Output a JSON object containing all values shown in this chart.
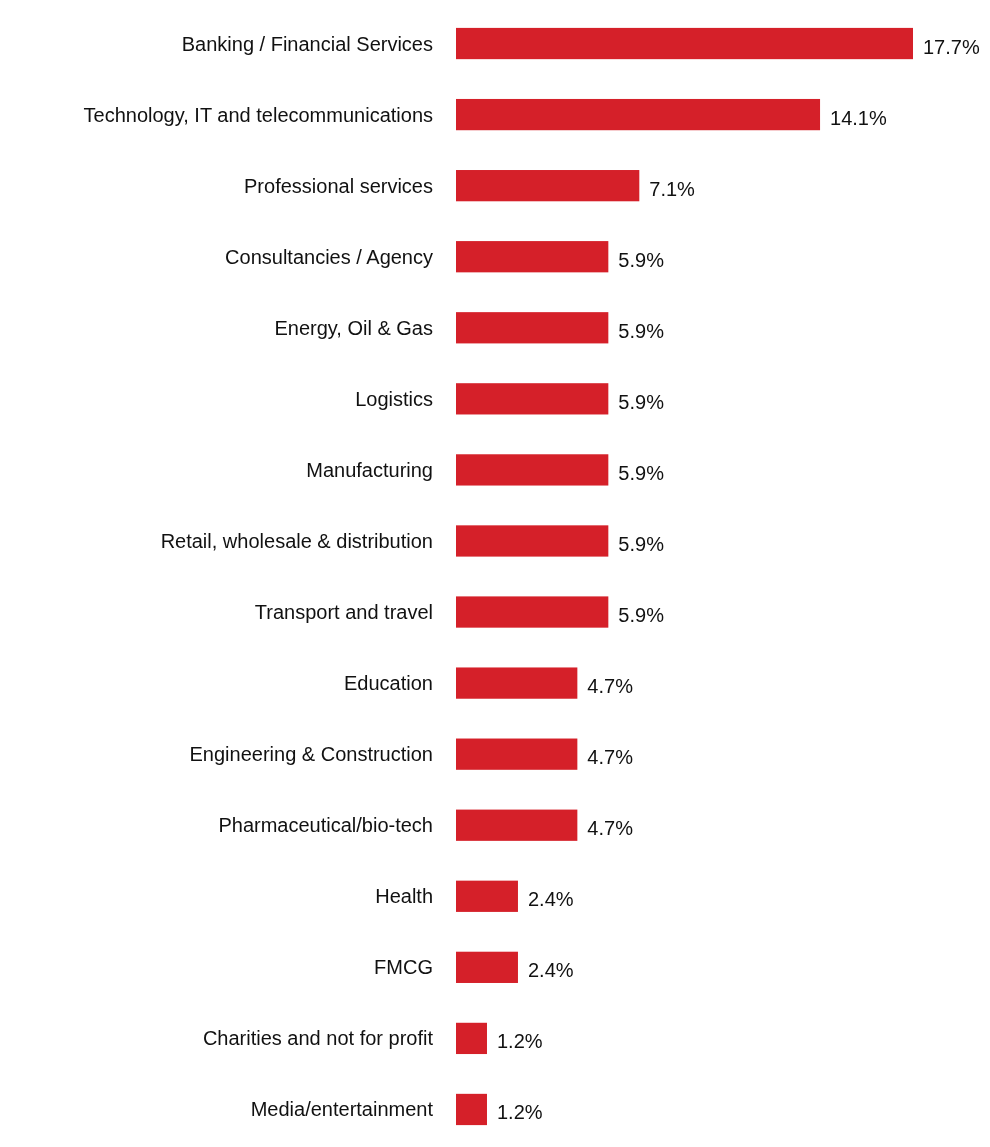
{
  "chart_data": {
    "type": "bar",
    "orientation": "horizontal",
    "color": "#d52029",
    "categories": [
      "Banking / Financial Services",
      "Technology, IT and telecommunications",
      "Professional services",
      "Consultancies / Agency",
      "Energy, Oil & Gas",
      "Logistics",
      "Manufacturing",
      "Retail, wholesale & distribution",
      "Transport and travel",
      "Education",
      "Engineering & Construction",
      "Pharmaceutical/bio-tech",
      "Health",
      "FMCG",
      "Charities and not for profit",
      "Media/entertainment"
    ],
    "values": [
      17.7,
      14.1,
      7.1,
      5.9,
      5.9,
      5.9,
      5.9,
      5.9,
      5.9,
      4.7,
      4.7,
      4.7,
      2.4,
      2.4,
      1.2,
      1.2
    ],
    "value_labels": [
      "17.7%",
      "14.1%",
      "7.1%",
      "5.9%",
      "5.9%",
      "5.9%",
      "5.9%",
      "5.9%",
      "5.9%",
      "4.7%",
      "4.7%",
      "4.7%",
      "2.4%",
      "2.4%",
      "1.2%",
      "1.2%"
    ]
  }
}
